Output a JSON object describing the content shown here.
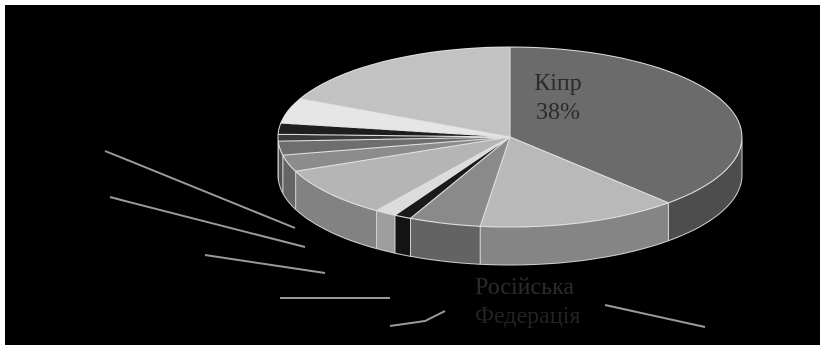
{
  "chart_data": {
    "type": "pie",
    "style": "3d-exploded-tilted",
    "title": "",
    "slices": [
      {
        "label": "Кіпр",
        "percent_text": "38%",
        "value": 38,
        "color": "#6b6b6b"
      },
      {
        "label": "",
        "value": 14,
        "color": "#b9b9b9"
      },
      {
        "label": "",
        "value": 5,
        "color": "#8a8a8a"
      },
      {
        "label": "",
        "value": 1.2,
        "color": "#1a1a1a"
      },
      {
        "label": "",
        "value": 1.5,
        "color": "#dcdcdc"
      },
      {
        "label": "",
        "value": 9,
        "color": "#b5b5b5"
      },
      {
        "label": "",
        "value": 3,
        "color": "#8c8c8c"
      },
      {
        "label": "",
        "value": 2.5,
        "color": "#6e6e6e"
      },
      {
        "label": "",
        "value": 1.2,
        "color": "#3a3a3a"
      },
      {
        "label": "",
        "value": 2,
        "color": "#1e1e1e"
      },
      {
        "label": "",
        "value": 4.5,
        "color": "#e6e6e6"
      },
      {
        "label": "",
        "value": 18,
        "color": "#c2c2c2"
      }
    ],
    "visible_labels": {
      "kipr_name": "Кіпр",
      "kipr_pct": "38%",
      "russia_partial": "Російська",
      "russia_partial_2": "Федерація"
    },
    "legend": "none"
  }
}
